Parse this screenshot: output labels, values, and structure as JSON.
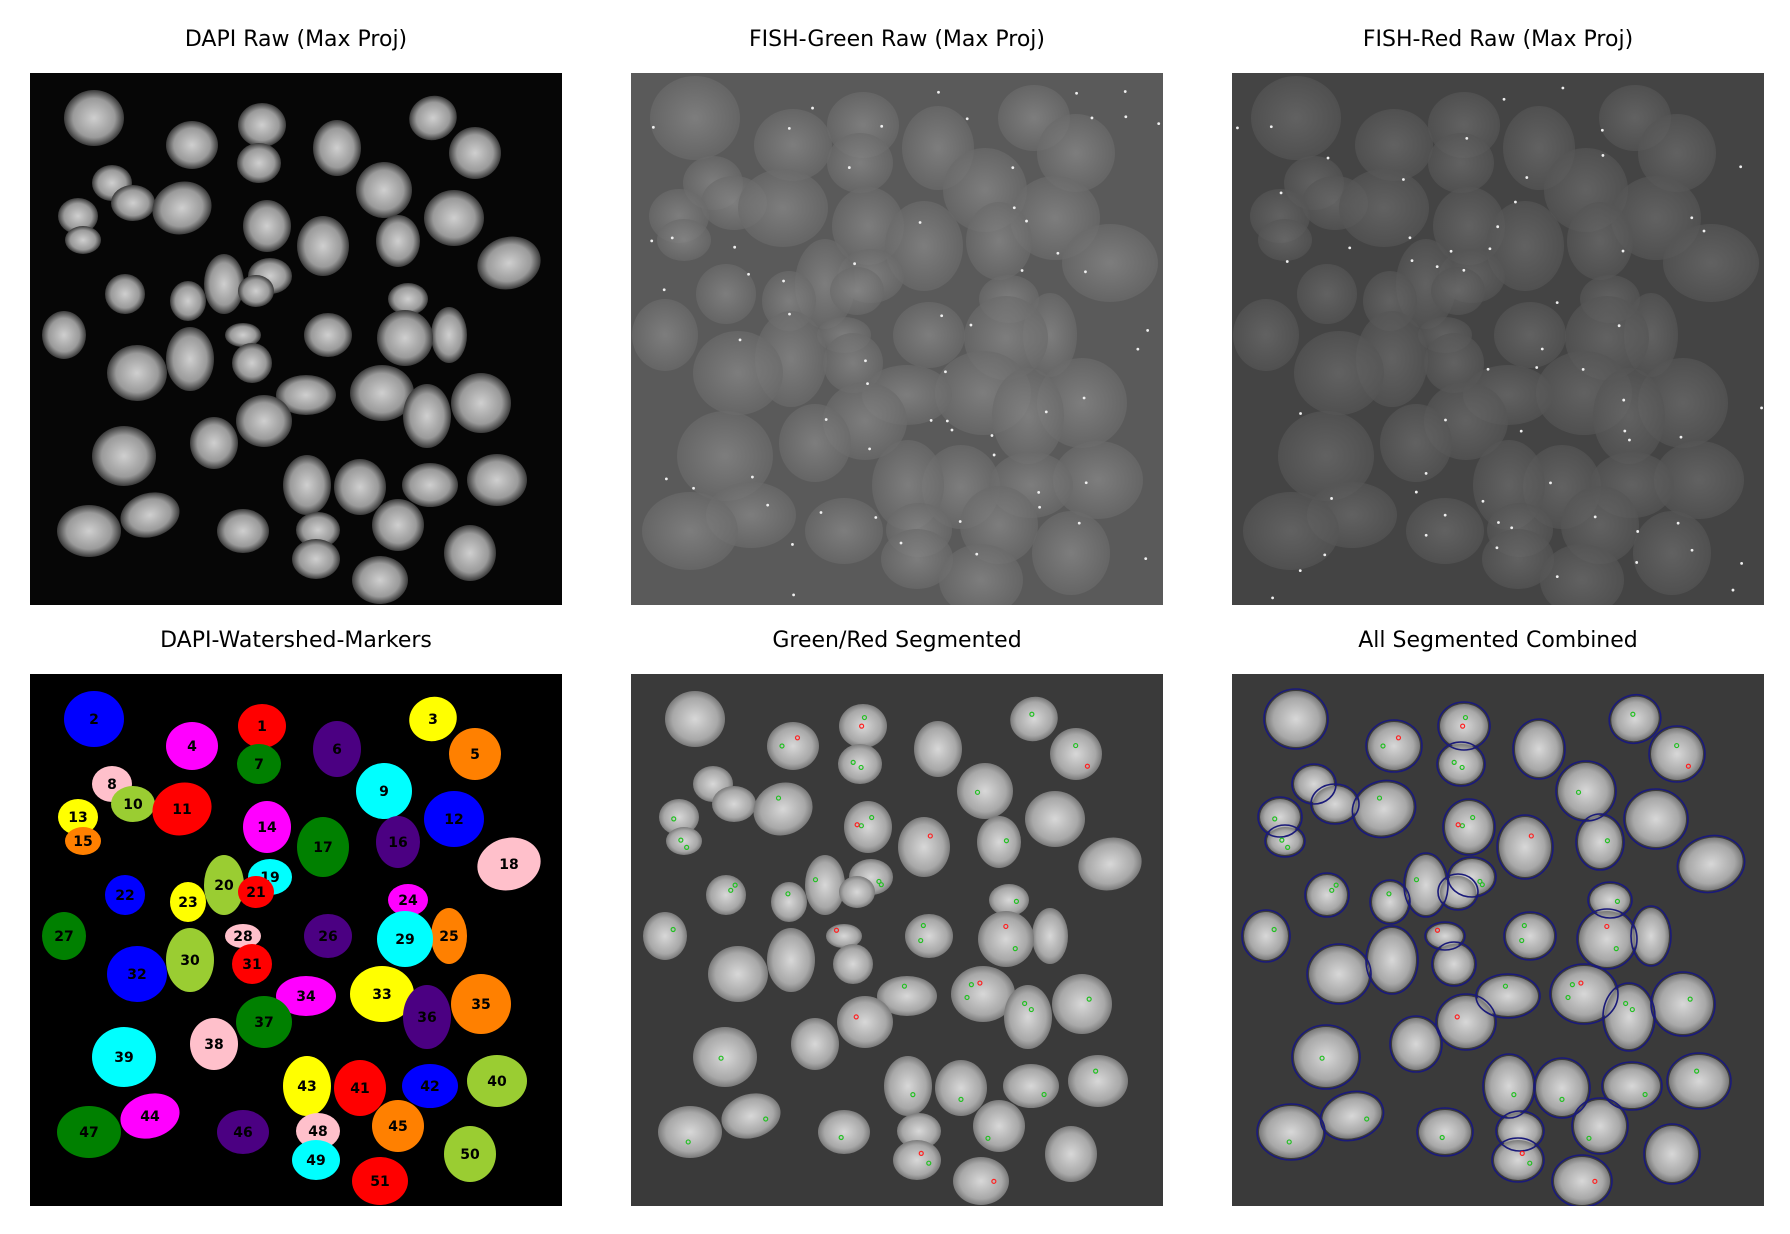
{
  "panels": [
    {
      "title": "DAPI Raw (Max Proj)",
      "kind": "dapi-raw"
    },
    {
      "title": "FISH-Green Raw (Max Proj)",
      "kind": "fish-green"
    },
    {
      "title": "FISH-Red Raw (Max Proj)",
      "kind": "fish-red"
    },
    {
      "title": "DAPI-Watershed-Markers",
      "kind": "markers"
    },
    {
      "title": "Green/Red Segmented",
      "kind": "segmented"
    },
    {
      "title": "All Segmented Combined",
      "kind": "combined"
    }
  ],
  "colors": {
    "nucleus_outline": "#1a1a7a",
    "green_spot": "#22c022",
    "red_spot": "#ff2020",
    "label_palette": [
      "#ff0000",
      "#0000ff",
      "#ffff00",
      "#ff00ff",
      "#ff8000",
      "#4b0082",
      "#008000",
      "#ffc0cb",
      "#00ffff",
      "#9acd32"
    ]
  },
  "marker_labels": [
    "1",
    "2",
    "3",
    "4",
    "5",
    "6",
    "7",
    "8",
    "9",
    "10",
    "11",
    "12",
    "13",
    "14",
    "15",
    "16",
    "17",
    "18",
    "19",
    "20",
    "21",
    "22",
    "23",
    "24",
    "25",
    "26",
    "27",
    "28",
    "29",
    "30",
    "31",
    "32",
    "33",
    "34",
    "35",
    "36",
    "37",
    "38",
    "39",
    "40",
    "41",
    "42",
    "43",
    "44",
    "45",
    "46",
    "47",
    "48",
    "49",
    "50",
    "51"
  ]
}
